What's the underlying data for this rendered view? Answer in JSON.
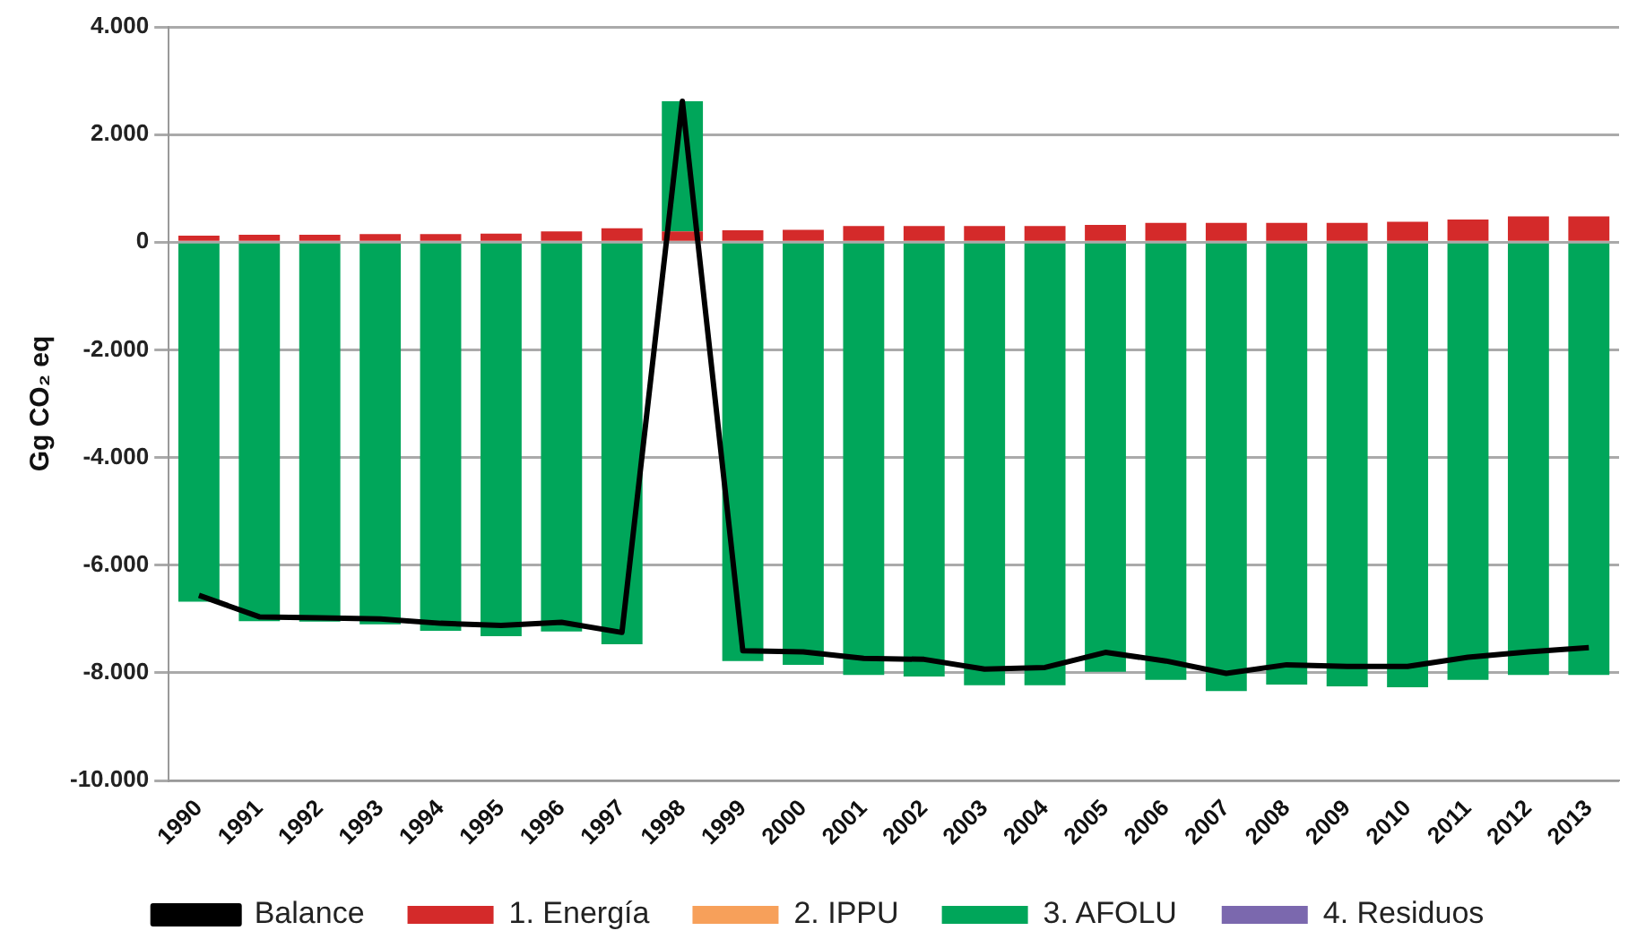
{
  "chart_data": {
    "type": "bar",
    "stacked": true,
    "ylabel": "Gg CO₂ eq",
    "categories": [
      "1990",
      "1991",
      "1992",
      "1993",
      "1994",
      "1995",
      "1996",
      "1997",
      "1998",
      "1999",
      "2000",
      "2001",
      "2002",
      "2003",
      "2004",
      "2005",
      "2006",
      "2007",
      "2008",
      "2009",
      "2010",
      "2011",
      "2012",
      "2013"
    ],
    "series": [
      {
        "name": "1. Energía",
        "color": "#d42a2a",
        "values": [
          120,
          140,
          140,
          150,
          150,
          160,
          200,
          260,
          200,
          220,
          230,
          300,
          300,
          300,
          300,
          320,
          360,
          360,
          360,
          360,
          380,
          420,
          480,
          480
        ]
      },
      {
        "name": "2. IPPU",
        "color": "#f7a05a",
        "values": [
          null,
          null,
          null,
          null,
          null,
          null,
          null,
          null,
          null,
          null,
          null,
          null,
          null,
          null,
          null,
          null,
          null,
          null,
          null,
          null,
          null,
          null,
          null,
          null
        ]
      },
      {
        "name": "3. AFOLU",
        "color": "#00a65a",
        "values": [
          -6680,
          -7040,
          -7050,
          -7100,
          -7220,
          -7320,
          -7230,
          -7470,
          2420,
          -7780,
          -7850,
          -8040,
          -8070,
          -8230,
          -8230,
          -7980,
          -8130,
          -8340,
          -8220,
          -8250,
          -8270,
          -8130,
          -8040,
          -8040
        ]
      },
      {
        "name": "4. Residuos",
        "color": "#7b68ae",
        "values": [
          null,
          null,
          null,
          null,
          null,
          null,
          null,
          null,
          null,
          null,
          null,
          null,
          null,
          null,
          null,
          null,
          null,
          null,
          null,
          null,
          null,
          null,
          null,
          null
        ]
      },
      {
        "name": "Balance",
        "type": "line",
        "color": "#000000",
        "values": [
          -6560,
          -6960,
          -6980,
          -7000,
          -7080,
          -7120,
          -7060,
          -7250,
          2620,
          -7590,
          -7610,
          -7730,
          -7750,
          -7930,
          -7900,
          -7620,
          -7780,
          -8010,
          -7850,
          -7880,
          -7880,
          -7710,
          -7610,
          -7530
        ]
      }
    ],
    "ylim": [
      -10000,
      4000
    ],
    "yticks": [
      {
        "value": -10000,
        "label": "-10.000"
      },
      {
        "value": -8000,
        "label": "-8.000"
      },
      {
        "value": -6000,
        "label": "-6.000"
      },
      {
        "value": -4000,
        "label": "-4.000"
      },
      {
        "value": -2000,
        "label": "-2.000"
      },
      {
        "value": 0,
        "label": "0"
      },
      {
        "value": 2000,
        "label": "2.000"
      },
      {
        "value": 4000,
        "label": "4.000"
      }
    ],
    "grid": "y",
    "legend": "bottom",
    "marker": "none",
    "line_style": "solid"
  }
}
